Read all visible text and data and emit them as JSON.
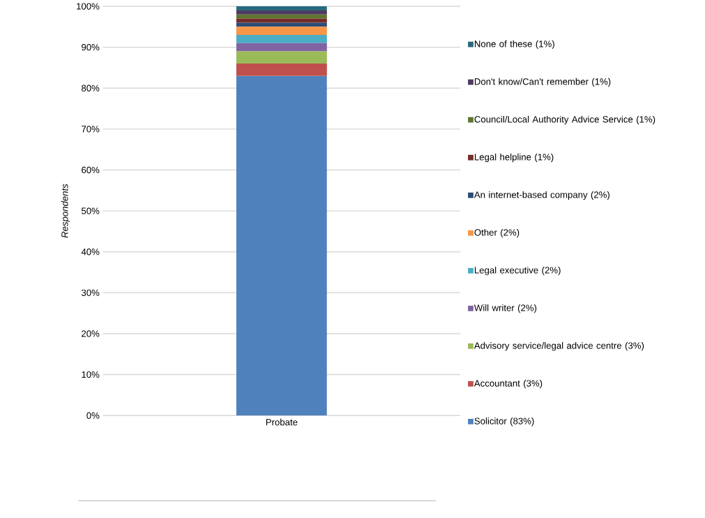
{
  "chart_data": {
    "type": "bar",
    "stacked": true,
    "ylabel": "Respondents",
    "categories": [
      "Probate"
    ],
    "series": [
      {
        "name": "Solicitor (83%)",
        "color": "#4f81bd",
        "values": [
          83
        ]
      },
      {
        "name": "Accountant (3%)",
        "color": "#c0504d",
        "values": [
          3
        ]
      },
      {
        "name": "Advisory service/legal advice centre (3%)",
        "color": "#9bbb59",
        "values": [
          3
        ]
      },
      {
        "name": "Will writer (2%)",
        "color": "#8064a2",
        "values": [
          2
        ]
      },
      {
        "name": "Legal executive (2%)",
        "color": "#4bacc6",
        "values": [
          2
        ]
      },
      {
        "name": "Other (2%)",
        "color": "#f79646",
        "values": [
          2
        ]
      },
      {
        "name": "An internet-based company (2%)",
        "color": "#2c4d75",
        "values": [
          1
        ]
      },
      {
        "name": "Legal helpline (1%)",
        "color": "#772c2a",
        "values": [
          1
        ]
      },
      {
        "name": "Council/Local Authority Advice Service (1%)",
        "color": "#5f7530",
        "values": [
          1
        ]
      },
      {
        "name": "Don't know/Can't remember (1%)",
        "color": "#4d3b62",
        "values": [
          1
        ]
      },
      {
        "name": "None of these (1%)",
        "color": "#276a7c",
        "values": [
          1
        ]
      }
    ],
    "ylim": [
      0,
      100
    ],
    "yticks": [
      {
        "value": 0,
        "label": "0%"
      },
      {
        "value": 10,
        "label": "10%"
      },
      {
        "value": 20,
        "label": "20%"
      },
      {
        "value": 30,
        "label": "30%"
      },
      {
        "value": 40,
        "label": "40%"
      },
      {
        "value": 50,
        "label": "50%"
      },
      {
        "value": 60,
        "label": "60%"
      },
      {
        "value": 70,
        "label": "70%"
      },
      {
        "value": 80,
        "label": "80%"
      },
      {
        "value": 90,
        "label": "90%"
      },
      {
        "value": 100,
        "label": "100%"
      }
    ],
    "grid": "y",
    "legend": "right"
  }
}
